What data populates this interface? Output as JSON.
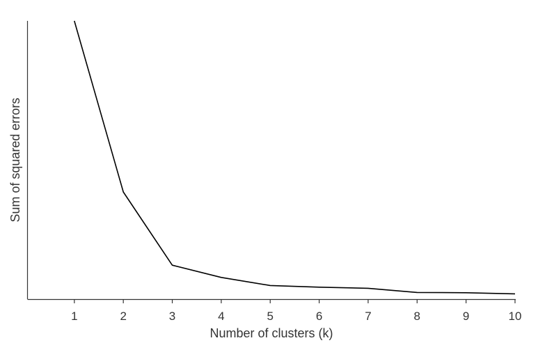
{
  "chart_data": {
    "type": "line",
    "title": "",
    "xlabel": "Number of clusters (k)",
    "ylabel": "Sum of squared errors",
    "x": [
      1,
      2,
      3,
      4,
      5,
      6,
      7,
      8,
      9,
      10
    ],
    "series": [
      {
        "values": [
          100,
          38.5,
          12.2,
          7.8,
          4.9,
          4.3,
          3.9,
          2.4,
          2.3,
          1.9
        ]
      }
    ],
    "x_tick_labels": [
      "1",
      "2",
      "3",
      "4",
      "5",
      "6",
      "7",
      "8",
      "9",
      "10"
    ],
    "xlim": [
      0.05,
      10
    ],
    "ylim": [
      0,
      100
    ],
    "y_tick_labels_shown": false,
    "grid": false,
    "legend": "none",
    "line_color": "#000000"
  }
}
